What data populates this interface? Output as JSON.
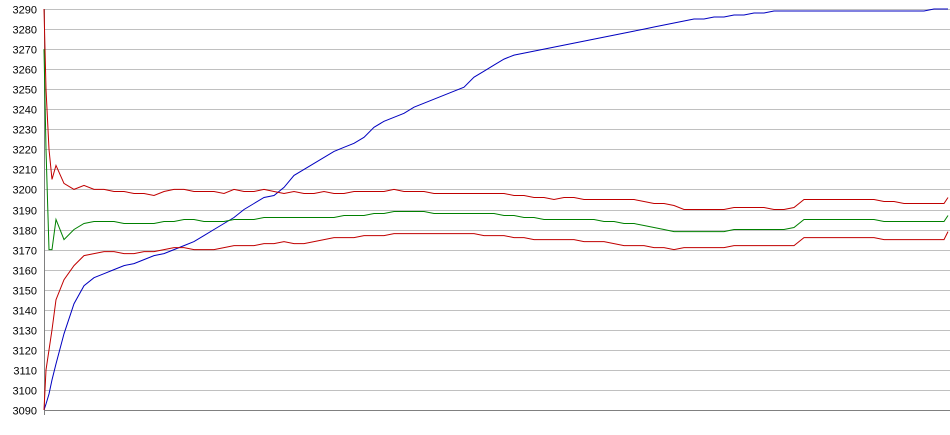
{
  "chart_data": {
    "type": "line",
    "ylim": [
      3090,
      3290
    ],
    "y_ticks": [
      3290,
      3280,
      3270,
      3260,
      3250,
      3240,
      3230,
      3220,
      3210,
      3200,
      3190,
      3180,
      3170,
      3160,
      3150,
      3140,
      3130,
      3120,
      3110,
      3100,
      3090
    ],
    "grid": true,
    "legend": "none",
    "x": [
      0,
      2,
      5,
      8,
      12,
      20,
      30,
      40,
      50,
      60,
      70,
      80,
      90,
      100,
      110,
      120,
      130,
      140,
      150,
      160,
      170,
      180,
      190,
      200,
      210,
      220,
      230,
      240,
      250,
      260,
      270,
      280,
      290,
      300,
      310,
      320,
      330,
      340,
      350,
      360,
      370,
      380,
      390,
      400,
      410,
      420,
      430,
      440,
      450,
      460,
      470,
      480,
      490,
      500,
      510,
      520,
      530,
      540,
      550,
      560,
      570,
      580,
      590,
      600,
      610,
      620,
      630,
      640,
      650,
      660,
      670,
      680,
      690,
      700,
      710,
      720,
      730,
      740,
      750,
      760,
      770,
      780,
      790,
      800,
      810,
      820,
      830,
      840,
      850,
      860,
      870,
      880,
      890,
      900,
      904
    ],
    "series": [
      {
        "color": "#0000c0",
        "values": [
          3090,
          3093,
          3098,
          3105,
          3113,
          3128,
          3143,
          3152,
          3156,
          3158,
          3160,
          3162,
          3163,
          3165,
          3167,
          3168,
          3170,
          3172,
          3174,
          3177,
          3180,
          3183,
          3186,
          3190,
          3193,
          3196,
          3197,
          3201,
          3207,
          3210,
          3213,
          3216,
          3219,
          3221,
          3223,
          3226,
          3231,
          3234,
          3236,
          3238,
          3241,
          3243,
          3245,
          3247,
          3249,
          3251,
          3256,
          3259,
          3262,
          3265,
          3267,
          3268,
          3269,
          3270,
          3271,
          3272,
          3273,
          3274,
          3275,
          3276,
          3277,
          3278,
          3279,
          3280,
          3281,
          3282,
          3283,
          3284,
          3285,
          3285,
          3286,
          3286,
          3287,
          3287,
          3288,
          3288,
          3289,
          3289,
          3289,
          3289,
          3289,
          3289,
          3289,
          3289,
          3289,
          3289,
          3289,
          3289,
          3289,
          3289,
          3289,
          3289,
          3290,
          3290,
          3290
        ]
      },
      {
        "color": "#c00000",
        "values": [
          3290,
          3250,
          3220,
          3205,
          3212,
          3203,
          3200,
          3202,
          3200,
          3200,
          3199,
          3199,
          3198,
          3198,
          3197,
          3199,
          3200,
          3200,
          3199,
          3199,
          3199,
          3198,
          3200,
          3199,
          3199,
          3200,
          3199,
          3198,
          3199,
          3198,
          3198,
          3199,
          3198,
          3198,
          3199,
          3199,
          3199,
          3199,
          3200,
          3199,
          3199,
          3199,
          3198,
          3198,
          3198,
          3198,
          3198,
          3198,
          3198,
          3198,
          3197,
          3197,
          3196,
          3196,
          3195,
          3196,
          3196,
          3195,
          3195,
          3195,
          3195,
          3195,
          3195,
          3194,
          3193,
          3193,
          3192,
          3190,
          3190,
          3190,
          3190,
          3190,
          3191,
          3191,
          3191,
          3191,
          3190,
          3190,
          3191,
          3195,
          3195,
          3195,
          3195,
          3195,
          3195,
          3195,
          3195,
          3194,
          3194,
          3193,
          3193,
          3193,
          3193,
          3193,
          3196
        ]
      },
      {
        "color": "#008000",
        "values": [
          3270,
          3220,
          3170,
          3170,
          3185,
          3175,
          3180,
          3183,
          3184,
          3184,
          3184,
          3183,
          3183,
          3183,
          3183,
          3184,
          3184,
          3185,
          3185,
          3184,
          3184,
          3184,
          3185,
          3185,
          3185,
          3186,
          3186,
          3186,
          3186,
          3186,
          3186,
          3186,
          3186,
          3187,
          3187,
          3187,
          3188,
          3188,
          3189,
          3189,
          3189,
          3189,
          3188,
          3188,
          3188,
          3188,
          3188,
          3188,
          3188,
          3187,
          3187,
          3186,
          3186,
          3185,
          3185,
          3185,
          3185,
          3185,
          3185,
          3184,
          3184,
          3183,
          3183,
          3182,
          3181,
          3180,
          3179,
          3179,
          3179,
          3179,
          3179,
          3179,
          3180,
          3180,
          3180,
          3180,
          3180,
          3180,
          3181,
          3185,
          3185,
          3185,
          3185,
          3185,
          3185,
          3185,
          3185,
          3184,
          3184,
          3184,
          3184,
          3184,
          3184,
          3184,
          3187
        ]
      },
      {
        "color": "#c00000",
        "values": [
          3090,
          3110,
          3120,
          3130,
          3145,
          3155,
          3162,
          3167,
          3168,
          3169,
          3169,
          3168,
          3168,
          3169,
          3169,
          3170,
          3171,
          3171,
          3170,
          3170,
          3170,
          3171,
          3172,
          3172,
          3172,
          3173,
          3173,
          3174,
          3173,
          3173,
          3174,
          3175,
          3176,
          3176,
          3176,
          3177,
          3177,
          3177,
          3178,
          3178,
          3178,
          3178,
          3178,
          3178,
          3178,
          3178,
          3178,
          3177,
          3177,
          3177,
          3176,
          3176,
          3175,
          3175,
          3175,
          3175,
          3175,
          3174,
          3174,
          3174,
          3173,
          3172,
          3172,
          3172,
          3171,
          3171,
          3170,
          3171,
          3171,
          3171,
          3171,
          3171,
          3172,
          3172,
          3172,
          3172,
          3172,
          3172,
          3172,
          3176,
          3176,
          3176,
          3176,
          3176,
          3176,
          3176,
          3176,
          3175,
          3175,
          3175,
          3175,
          3175,
          3175,
          3175,
          3179
        ]
      }
    ]
  }
}
